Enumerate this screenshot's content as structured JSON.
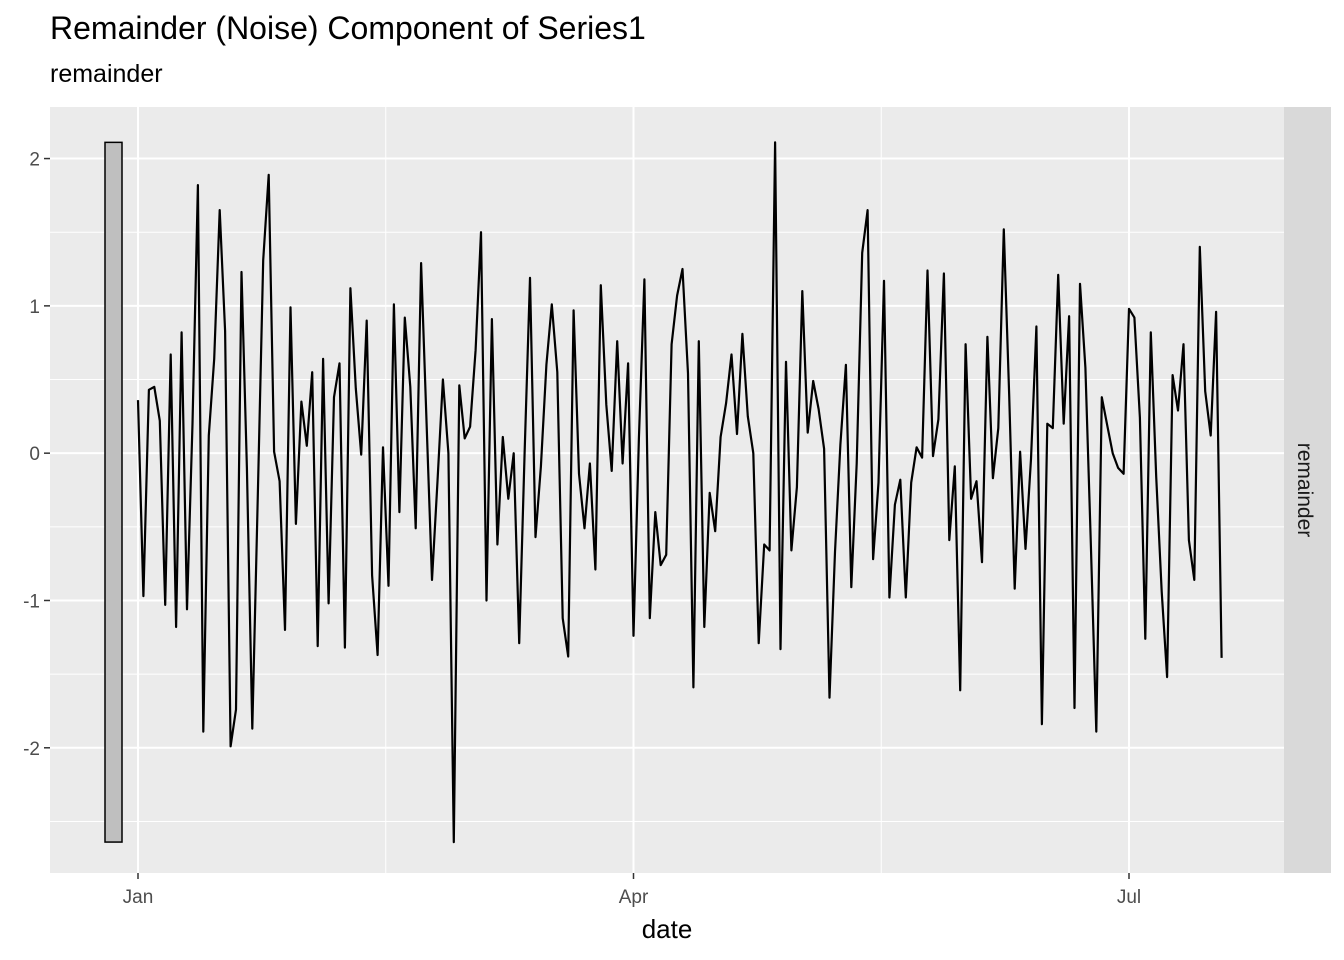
{
  "chart_data": {
    "type": "line",
    "title": "Remainder (Noise) Component of Series1",
    "subtitle": "remainder",
    "xlabel": "date",
    "ylabel": "",
    "facet_label": "remainder",
    "x_start": "2020-01-01",
    "x_ticks": [
      {
        "label": "Jan",
        "date": "2020-01-01"
      },
      {
        "label": "Apr",
        "date": "2020-04-01"
      },
      {
        "label": "Jul",
        "date": "2020-07-01"
      }
    ],
    "y_ticks": [
      2,
      1,
      0,
      -1,
      -2
    ],
    "ylim": [
      -2.85,
      2.35
    ],
    "grid": true,
    "range_bar": {
      "min": -2.64,
      "max": 2.11
    },
    "series": [
      {
        "values": [
          0.36,
          -0.97,
          0.43,
          0.45,
          0.22,
          -1.03,
          0.67,
          -1.18,
          0.82,
          -1.06,
          0.2,
          1.82,
          -1.89,
          0.12,
          0.64,
          1.65,
          0.83,
          -1.99,
          -1.74,
          1.23,
          -0.1,
          -1.87,
          -0.29,
          1.31,
          1.89,
          0.01,
          -0.19,
          -1.2,
          0.99,
          -0.48,
          0.35,
          0.05,
          0.55,
          -1.31,
          0.64,
          -1.02,
          0.38,
          0.61,
          -1.32,
          1.12,
          0.44,
          -0.01,
          0.9,
          -0.83,
          -1.37,
          0.04,
          -0.9,
          1.01,
          -0.4,
          0.92,
          0.45,
          -0.51,
          1.29,
          0.2,
          -0.86,
          -0.19,
          0.5,
          0.0,
          -2.64,
          0.46,
          0.1,
          0.18,
          0.7,
          1.5,
          -1.0,
          0.91,
          -0.62,
          0.11,
          -0.31,
          0.0,
          -1.29,
          0.0,
          1.19,
          -0.57,
          -0.09,
          0.6,
          1.01,
          0.55,
          -1.12,
          -1.38,
          0.97,
          -0.14,
          -0.51,
          -0.07,
          -0.79,
          1.14,
          0.33,
          -0.12,
          0.76,
          -0.07,
          0.61,
          -1.24,
          0.1,
          1.18,
          -1.12,
          -0.4,
          -0.76,
          -0.69,
          0.74,
          1.07,
          1.25,
          0.54,
          -1.59,
          0.76,
          -1.18,
          -0.27,
          -0.53,
          0.11,
          0.34,
          0.67,
          0.13,
          0.81,
          0.25,
          0.0,
          -1.29,
          -0.62,
          -0.66,
          2.11,
          -1.33,
          0.62,
          -0.66,
          -0.23,
          1.1,
          0.14,
          0.49,
          0.3,
          0.03,
          -1.66,
          -0.67,
          0.06,
          0.6,
          -0.91,
          -0.07,
          1.36,
          1.65,
          -0.72,
          -0.2,
          1.17,
          -0.98,
          -0.35,
          -0.18,
          -0.98,
          -0.2,
          0.04,
          -0.03,
          1.24,
          -0.02,
          0.23,
          1.22,
          -0.59,
          -0.09,
          -1.61,
          0.74,
          -0.31,
          -0.19,
          -0.74,
          0.79,
          -0.17,
          0.17,
          1.52,
          0.39,
          -0.92,
          0.01,
          -0.65,
          -0.04,
          0.86,
          -1.84,
          0.2,
          0.17,
          1.21,
          0.2,
          0.93,
          -1.73,
          1.15,
          0.58,
          -0.63,
          -1.89,
          0.38,
          0.19,
          0.0,
          -0.1,
          -0.14,
          0.98,
          0.92,
          0.24,
          -1.26,
          0.82,
          -0.16,
          -0.94,
          -1.52,
          0.53,
          0.29,
          0.74,
          -0.59,
          -0.86,
          1.4,
          0.42,
          0.12,
          0.96,
          -1.39
        ]
      }
    ]
  }
}
